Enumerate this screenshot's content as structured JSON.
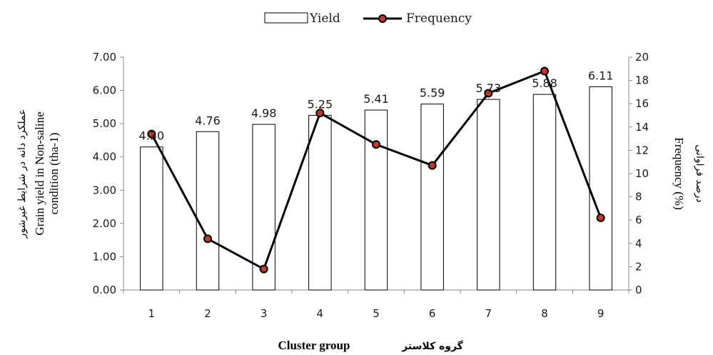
{
  "chart_data": {
    "type": "bar",
    "categories": [
      "1",
      "2",
      "3",
      "4",
      "5",
      "6",
      "7",
      "8",
      "9"
    ],
    "series": [
      {
        "name": "Yield",
        "type": "bar",
        "axis": "left",
        "values": [
          4.3,
          4.76,
          4.98,
          5.25,
          5.41,
          5.59,
          5.73,
          5.88,
          6.11
        ]
      },
      {
        "name": "Frequency",
        "type": "line",
        "axis": "right",
        "values": [
          13.4,
          4.4,
          1.8,
          15.2,
          12.5,
          10.7,
          16.9,
          18.8,
          6.2
        ]
      }
    ],
    "data_labels": [
      "4.30",
      "4.76",
      "4.98",
      "5.25",
      "5.41",
      "5.59",
      "5.73",
      "5.88",
      "6.11"
    ],
    "ylim_left": [
      0,
      7
    ],
    "ylim_right": [
      0,
      20
    ],
    "yticks_left": [
      "0.00",
      "1.00",
      "2.00",
      "3.00",
      "4.00",
      "5.00",
      "6.00",
      "7.00"
    ],
    "yticks_right": [
      "0",
      "2",
      "4",
      "6",
      "8",
      "10",
      "12",
      "14",
      "16",
      "18",
      "20"
    ],
    "ylabel_left_persian": "عملکرد دانه در شرایط غیرشور",
    "ylabel_left_line1": "Grain yield in Non-saline",
    "ylabel_left_line2": "condition (tha-1)",
    "ylabel_right": "Frequency (%)",
    "ylabel_right_persian": "درصد فراوانی",
    "xlabel": "Cluster group",
    "xlabel_persian": "گروه کلاستر",
    "grid": false,
    "legend": "top-center"
  }
}
